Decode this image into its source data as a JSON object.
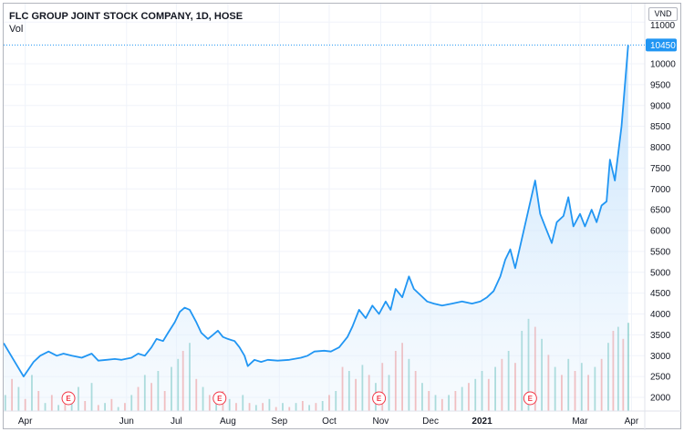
{
  "header": {
    "title": "FLC GROUP JOINT STOCK COMPANY, 1D, HOSE",
    "vol_label": "Vol",
    "currency": "VND"
  },
  "chart_data": {
    "type": "area",
    "title": "FLC GROUP JOINT STOCK COMPANY, 1D, HOSE",
    "currency": "VND",
    "xlabel": "",
    "ylabel": "",
    "ylim": [
      1800,
      11000
    ],
    "y_ticks": [
      11000,
      10000,
      9500,
      9000,
      8500,
      8000,
      7500,
      7000,
      6500,
      6000,
      5500,
      5000,
      4500,
      4000,
      3500,
      3000,
      2500,
      2000
    ],
    "last_value": 10450,
    "last_value_label": "10450",
    "x_ticks": [
      {
        "label": "Apr",
        "date": "2020-04-01"
      },
      {
        "label": "Jun",
        "date": "2020-06-01"
      },
      {
        "label": "Jul",
        "date": "2020-07-01"
      },
      {
        "label": "Aug",
        "date": "2020-08-01"
      },
      {
        "label": "Sep",
        "date": "2020-09-01"
      },
      {
        "label": "Oct",
        "date": "2020-10-01"
      },
      {
        "label": "Nov",
        "date": "2020-11-01"
      },
      {
        "label": "Dec",
        "date": "2020-12-01"
      },
      {
        "label": "2021",
        "date": "2021-01-01",
        "bold": true
      },
      {
        "label": "Mar",
        "date": "2021-03-01"
      },
      {
        "label": "Apr",
        "date": "2021-04-01"
      }
    ],
    "x_range": [
      "2020-03-19",
      "2021-04-09"
    ],
    "colors": {
      "line": "#2196f3",
      "area_top": "#cfe6fb",
      "volume_up": "#26a69a",
      "volume_down": "#ef5350",
      "event": "#f23645",
      "grid": "#f0f3fa"
    },
    "series": [
      {
        "name": "",
        "points": [
          [
            "2020-03-19",
            3300
          ],
          [
            "2020-03-25",
            2900
          ],
          [
            "2020-03-31",
            2500
          ],
          [
            "2020-04-06",
            2850
          ],
          [
            "2020-04-10",
            3000
          ],
          [
            "2020-04-15",
            3100
          ],
          [
            "2020-04-20",
            3000
          ],
          [
            "2020-04-24",
            3050
          ],
          [
            "2020-04-29",
            3000
          ],
          [
            "2020-05-05",
            2950
          ],
          [
            "2020-05-11",
            3050
          ],
          [
            "2020-05-15",
            2880
          ],
          [
            "2020-05-20",
            2900
          ],
          [
            "2020-05-25",
            2920
          ],
          [
            "2020-05-29",
            2900
          ],
          [
            "2020-06-04",
            2950
          ],
          [
            "2020-06-08",
            3050
          ],
          [
            "2020-06-12",
            3000
          ],
          [
            "2020-06-16",
            3200
          ],
          [
            "2020-06-19",
            3400
          ],
          [
            "2020-06-23",
            3350
          ],
          [
            "2020-06-26",
            3550
          ],
          [
            "2020-06-30",
            3800
          ],
          [
            "2020-07-03",
            4050
          ],
          [
            "2020-07-06",
            4150
          ],
          [
            "2020-07-09",
            4100
          ],
          [
            "2020-07-13",
            3800
          ],
          [
            "2020-07-16",
            3550
          ],
          [
            "2020-07-20",
            3400
          ],
          [
            "2020-07-23",
            3500
          ],
          [
            "2020-07-26",
            3600
          ],
          [
            "2020-07-29",
            3450
          ],
          [
            "2020-08-01",
            3400
          ],
          [
            "2020-08-05",
            3350
          ],
          [
            "2020-08-08",
            3200
          ],
          [
            "2020-08-11",
            3000
          ],
          [
            "2020-08-13",
            2750
          ],
          [
            "2020-08-17",
            2900
          ],
          [
            "2020-08-21",
            2850
          ],
          [
            "2020-08-25",
            2900
          ],
          [
            "2020-08-31",
            2880
          ],
          [
            "2020-09-07",
            2900
          ],
          [
            "2020-09-14",
            2950
          ],
          [
            "2020-09-18",
            3000
          ],
          [
            "2020-09-22",
            3100
          ],
          [
            "2020-09-28",
            3120
          ],
          [
            "2020-10-02",
            3100
          ],
          [
            "2020-10-07",
            3200
          ],
          [
            "2020-10-12",
            3450
          ],
          [
            "2020-10-15",
            3700
          ],
          [
            "2020-10-19",
            4100
          ],
          [
            "2020-10-23",
            3900
          ],
          [
            "2020-10-27",
            4200
          ],
          [
            "2020-10-31",
            4000
          ],
          [
            "2020-11-04",
            4300
          ],
          [
            "2020-11-07",
            4100
          ],
          [
            "2020-11-10",
            4600
          ],
          [
            "2020-11-14",
            4400
          ],
          [
            "2020-11-18",
            4900
          ],
          [
            "2020-11-21",
            4600
          ],
          [
            "2020-11-25",
            4450
          ],
          [
            "2020-11-29",
            4300
          ],
          [
            "2020-12-03",
            4250
          ],
          [
            "2020-12-08",
            4200
          ],
          [
            "2020-12-14",
            4250
          ],
          [
            "2020-12-20",
            4300
          ],
          [
            "2020-12-26",
            4250
          ],
          [
            "2020-12-31",
            4300
          ],
          [
            "2021-01-04",
            4400
          ],
          [
            "2021-01-08",
            4550
          ],
          [
            "2021-01-12",
            4900
          ],
          [
            "2021-01-15",
            5300
          ],
          [
            "2021-01-18",
            5550
          ],
          [
            "2021-01-21",
            5100
          ],
          [
            "2021-01-25",
            5800
          ],
          [
            "2021-01-29",
            6500
          ],
          [
            "2021-02-02",
            7200
          ],
          [
            "2021-02-05",
            6400
          ],
          [
            "2021-02-08",
            6100
          ],
          [
            "2021-02-12",
            5700
          ],
          [
            "2021-02-15",
            6200
          ],
          [
            "2021-02-19",
            6350
          ],
          [
            "2021-02-22",
            6800
          ],
          [
            "2021-02-25",
            6100
          ],
          [
            "2021-03-01",
            6400
          ],
          [
            "2021-03-04",
            6100
          ],
          [
            "2021-03-08",
            6500
          ],
          [
            "2021-03-11",
            6200
          ],
          [
            "2021-03-14",
            6600
          ],
          [
            "2021-03-17",
            6700
          ],
          [
            "2021-03-19",
            7700
          ],
          [
            "2021-03-22",
            7200
          ],
          [
            "2021-03-26",
            8500
          ],
          [
            "2021-03-30",
            10450
          ]
        ]
      }
    ],
    "volume": [
      [
        "2020-03-20",
        2200,
        "up"
      ],
      [
        "2020-03-24",
        2600,
        "down"
      ],
      [
        "2020-03-28",
        2400,
        "up"
      ],
      [
        "2020-04-01",
        2100,
        "down"
      ],
      [
        "2020-04-05",
        2700,
        "up"
      ],
      [
        "2020-04-09",
        2300,
        "down"
      ],
      [
        "2020-04-13",
        2000,
        "up"
      ],
      [
        "2020-04-17",
        2200,
        "down"
      ],
      [
        "2020-04-21",
        1950,
        "up"
      ],
      [
        "2020-04-25",
        2100,
        "down"
      ],
      [
        "2020-04-29",
        2000,
        "up"
      ],
      [
        "2020-05-03",
        2400,
        "up"
      ],
      [
        "2020-05-07",
        2050,
        "down"
      ],
      [
        "2020-05-11",
        2500,
        "up"
      ],
      [
        "2020-05-15",
        1950,
        "down"
      ],
      [
        "2020-05-19",
        2000,
        "up"
      ],
      [
        "2020-05-23",
        2100,
        "down"
      ],
      [
        "2020-05-27",
        1900,
        "up"
      ],
      [
        "2020-05-31",
        2000,
        "down"
      ],
      [
        "2020-06-04",
        2200,
        "up"
      ],
      [
        "2020-06-08",
        2400,
        "down"
      ],
      [
        "2020-06-12",
        2700,
        "up"
      ],
      [
        "2020-06-16",
        2500,
        "down"
      ],
      [
        "2020-06-20",
        2800,
        "up"
      ],
      [
        "2020-06-24",
        2300,
        "down"
      ],
      [
        "2020-06-28",
        2900,
        "up"
      ],
      [
        "2020-07-02",
        3100,
        "up"
      ],
      [
        "2020-07-05",
        3300,
        "down"
      ],
      [
        "2020-07-09",
        3500,
        "up"
      ],
      [
        "2020-07-13",
        2600,
        "down"
      ],
      [
        "2020-07-17",
        2400,
        "up"
      ],
      [
        "2020-07-21",
        2200,
        "down"
      ],
      [
        "2020-07-25",
        2000,
        "up"
      ],
      [
        "2020-07-29",
        2300,
        "down"
      ],
      [
        "2020-08-02",
        2100,
        "up"
      ],
      [
        "2020-08-06",
        2000,
        "down"
      ],
      [
        "2020-08-10",
        2200,
        "up"
      ],
      [
        "2020-08-14",
        2000,
        "down"
      ],
      [
        "2020-08-18",
        1950,
        "up"
      ],
      [
        "2020-08-22",
        2000,
        "down"
      ],
      [
        "2020-08-26",
        2100,
        "up"
      ],
      [
        "2020-08-30",
        1900,
        "down"
      ],
      [
        "2020-09-03",
        2000,
        "up"
      ],
      [
        "2020-09-07",
        1900,
        "down"
      ],
      [
        "2020-09-11",
        2000,
        "up"
      ],
      [
        "2020-09-15",
        2050,
        "down"
      ],
      [
        "2020-09-19",
        1950,
        "up"
      ],
      [
        "2020-09-23",
        2000,
        "down"
      ],
      [
        "2020-09-27",
        2050,
        "up"
      ],
      [
        "2020-10-01",
        2200,
        "down"
      ],
      [
        "2020-10-05",
        2300,
        "up"
      ],
      [
        "2020-10-09",
        2900,
        "down"
      ],
      [
        "2020-10-13",
        2800,
        "up"
      ],
      [
        "2020-10-17",
        2600,
        "down"
      ],
      [
        "2020-10-21",
        2950,
        "up"
      ],
      [
        "2020-10-25",
        2700,
        "down"
      ],
      [
        "2020-10-29",
        2500,
        "up"
      ],
      [
        "2020-11-02",
        3000,
        "down"
      ],
      [
        "2020-11-06",
        2700,
        "up"
      ],
      [
        "2020-11-10",
        3300,
        "down"
      ],
      [
        "2020-11-14",
        3500,
        "down"
      ],
      [
        "2020-11-18",
        3100,
        "up"
      ],
      [
        "2020-11-22",
        2800,
        "down"
      ],
      [
        "2020-11-26",
        2500,
        "up"
      ],
      [
        "2020-11-30",
        2300,
        "down"
      ],
      [
        "2020-12-04",
        2200,
        "up"
      ],
      [
        "2020-12-08",
        2100,
        "down"
      ],
      [
        "2020-12-12",
        2200,
        "up"
      ],
      [
        "2020-12-16",
        2300,
        "down"
      ],
      [
        "2020-12-20",
        2400,
        "up"
      ],
      [
        "2020-12-24",
        2500,
        "down"
      ],
      [
        "2020-12-28",
        2600,
        "up"
      ],
      [
        "2021-01-01",
        2800,
        "up"
      ],
      [
        "2021-01-05",
        2600,
        "down"
      ],
      [
        "2021-01-09",
        2900,
        "up"
      ],
      [
        "2021-01-13",
        3100,
        "down"
      ],
      [
        "2021-01-17",
        3300,
        "up"
      ],
      [
        "2021-01-21",
        3000,
        "down"
      ],
      [
        "2021-01-25",
        3800,
        "up"
      ],
      [
        "2021-01-29",
        4100,
        "up"
      ],
      [
        "2021-02-02",
        3900,
        "down"
      ],
      [
        "2021-02-06",
        3600,
        "up"
      ],
      [
        "2021-02-10",
        3200,
        "down"
      ],
      [
        "2021-02-14",
        2900,
        "up"
      ],
      [
        "2021-02-18",
        2700,
        "down"
      ],
      [
        "2021-02-22",
        3100,
        "up"
      ],
      [
        "2021-02-26",
        2800,
        "down"
      ],
      [
        "2021-03-02",
        3000,
        "up"
      ],
      [
        "2021-03-06",
        2700,
        "down"
      ],
      [
        "2021-03-10",
        2900,
        "up"
      ],
      [
        "2021-03-14",
        3100,
        "down"
      ],
      [
        "2021-03-18",
        3500,
        "up"
      ],
      [
        "2021-03-21",
        3800,
        "down"
      ],
      [
        "2021-03-24",
        3900,
        "up"
      ],
      [
        "2021-03-27",
        3600,
        "down"
      ],
      [
        "2021-03-30",
        4000,
        "up"
      ]
    ],
    "events": [
      {
        "label": "E",
        "date": "2020-04-27"
      },
      {
        "label": "E",
        "date": "2020-07-27"
      },
      {
        "label": "E",
        "date": "2020-10-31"
      },
      {
        "label": "E",
        "date": "2021-01-30"
      }
    ],
    "grid": true,
    "legend": "none"
  }
}
